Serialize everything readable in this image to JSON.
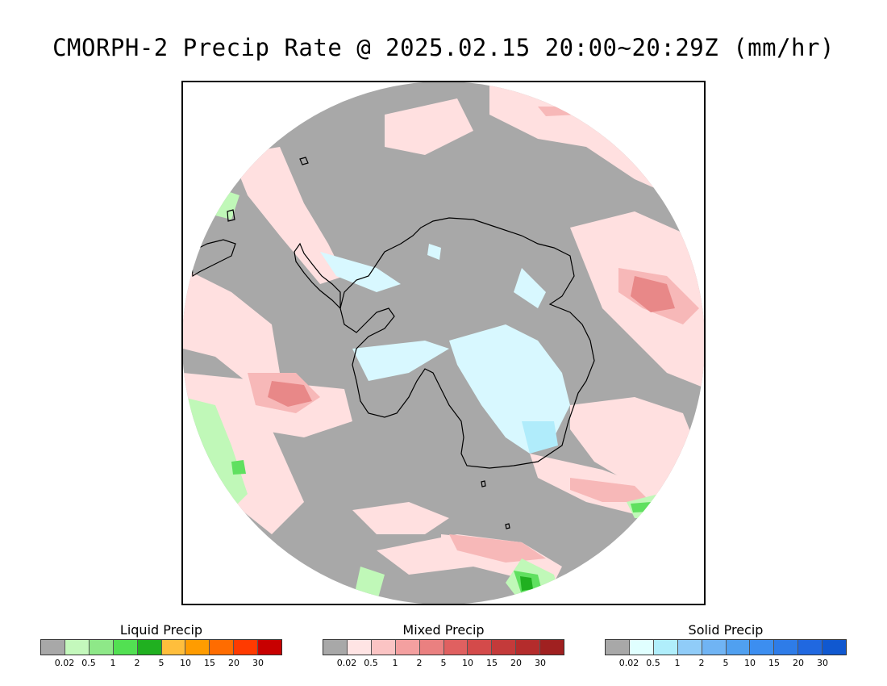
{
  "title": "CMORPH-2 Precip Rate @ 2025.02.15 20:00~20:29Z (mm/hr)",
  "map": {
    "projection": "south-polar-stereographic",
    "colors": {
      "no_precip": "#a8a8a8",
      "mixed_light": "#ffe0e0",
      "mixed_medium": "#f7b8b8",
      "mixed_heavy": "#e88888",
      "liquid_light": "#c0f8b8",
      "liquid_medium": "#60e060",
      "liquid_heavy": "#20b020",
      "solid_light": "#d8f8ff",
      "solid_medium": "#b0ecfb",
      "coastline": "#000000"
    }
  },
  "legends": [
    {
      "label": "Liquid Precip",
      "colors": [
        "#a8a8a8",
        "#c4f8bc",
        "#8ee888",
        "#52e052",
        "#20b020",
        "#ffbe3c",
        "#ff9c00",
        "#ff6c00",
        "#ff3a00",
        "#c80000"
      ],
      "ticks": [
        "0.02",
        "0.5",
        "1",
        "2",
        "5",
        "10",
        "15",
        "20",
        "30"
      ]
    },
    {
      "label": "Mixed Precip",
      "colors": [
        "#a8a8a8",
        "#ffe4e4",
        "#fbc4c4",
        "#f4a0a0",
        "#ea8080",
        "#e06060",
        "#d44a4a",
        "#c43a3a",
        "#b42c2c",
        "#a02020"
      ],
      "ticks": [
        "0.02",
        "0.5",
        "1",
        "2",
        "5",
        "10",
        "15",
        "20",
        "30"
      ]
    },
    {
      "label": "Solid Precip",
      "colors": [
        "#a8a8a8",
        "#e0ffff",
        "#b0eefb",
        "#90ccf8",
        "#70b4f4",
        "#50a0f0",
        "#3c8ef0",
        "#2e7ce8",
        "#2068e0",
        "#1058d0"
      ],
      "ticks": [
        "0.02",
        "0.5",
        "1",
        "2",
        "5",
        "10",
        "15",
        "20",
        "30"
      ]
    }
  ]
}
